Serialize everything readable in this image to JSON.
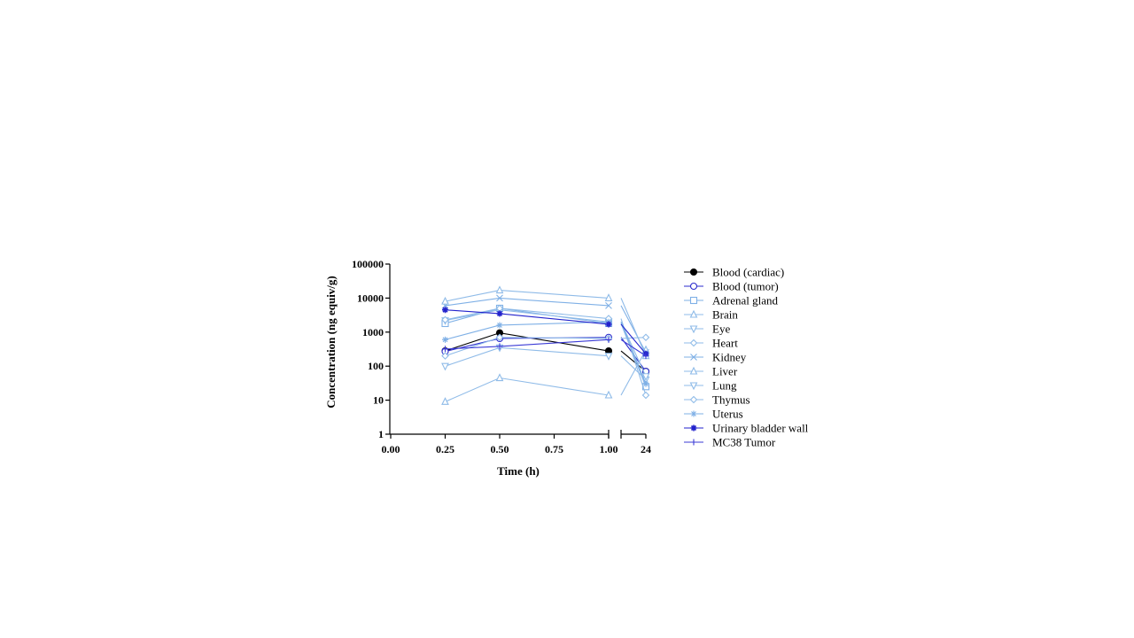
{
  "chart_data": {
    "type": "line",
    "xlabel": "Time (h)",
    "ylabel": "Concentration (ng equiv/g)",
    "y_scale": "log",
    "ylim": [
      1,
      100000
    ],
    "y_ticks": [
      "1",
      "10",
      "100",
      "1000",
      "10000",
      "100000"
    ],
    "x_segments": [
      {
        "range": [
          0,
          1
        ],
        "ticks": [
          "0.00",
          "0.25",
          "0.50",
          "0.75",
          "1.00"
        ]
      },
      {
        "range": [
          24,
          24
        ],
        "ticks": [
          "24"
        ]
      }
    ],
    "x": [
      0.25,
      0.5,
      1.0,
      24
    ],
    "legend_position": "right",
    "series": [
      {
        "name": "Blood (cardiac)",
        "color": "#000000",
        "marker": "filled-circle",
        "values": [
          280,
          950,
          280,
          70
        ]
      },
      {
        "name": "Blood (tumor)",
        "color": "#2b2bcc",
        "marker": "open-circle",
        "values": [
          270,
          650,
          700,
          70
        ]
      },
      {
        "name": "Adrenal gland",
        "color": "#7fb0e6",
        "marker": "open-square",
        "values": [
          1800,
          5000,
          1800,
          25
        ]
      },
      {
        "name": "Brain",
        "color": "#8fbbe8",
        "marker": "open-triangle",
        "values": [
          9,
          45,
          14,
          300
        ]
      },
      {
        "name": "Eye",
        "color": "#8fbbe8",
        "marker": "open-triangle-down",
        "values": [
          100,
          350,
          200,
          40
        ]
      },
      {
        "name": "Heart",
        "color": "#8fbbe8",
        "marker": "open-diamond",
        "values": [
          200,
          700,
          650,
          700
        ]
      },
      {
        "name": "Kidney",
        "color": "#7fb0e6",
        "marker": "x",
        "values": [
          6000,
          10000,
          6000,
          250
        ]
      },
      {
        "name": "Liver",
        "color": "#8fbbe8",
        "marker": "open-triangle",
        "values": [
          8000,
          17000,
          10000,
          200
        ]
      },
      {
        "name": "Lung",
        "color": "#8fbbe8",
        "marker": "open-triangle-down",
        "values": [
          2200,
          4500,
          2000,
          50
        ]
      },
      {
        "name": "Thymus",
        "color": "#8fbbe8",
        "marker": "open-diamond",
        "values": [
          2300,
          5000,
          2500,
          14
        ]
      },
      {
        "name": "Uterus",
        "color": "#7fb0e6",
        "marker": "asterisk",
        "values": [
          600,
          1600,
          2000,
          30
        ]
      },
      {
        "name": "Urinary bladder wall",
        "color": "#2222cc",
        "marker": "star",
        "values": [
          4500,
          3500,
          1700,
          230
        ]
      },
      {
        "name": "MC38 Tumor",
        "color": "#3b3bd6",
        "marker": "plus",
        "values": [
          320,
          380,
          600,
          200
        ]
      }
    ]
  }
}
